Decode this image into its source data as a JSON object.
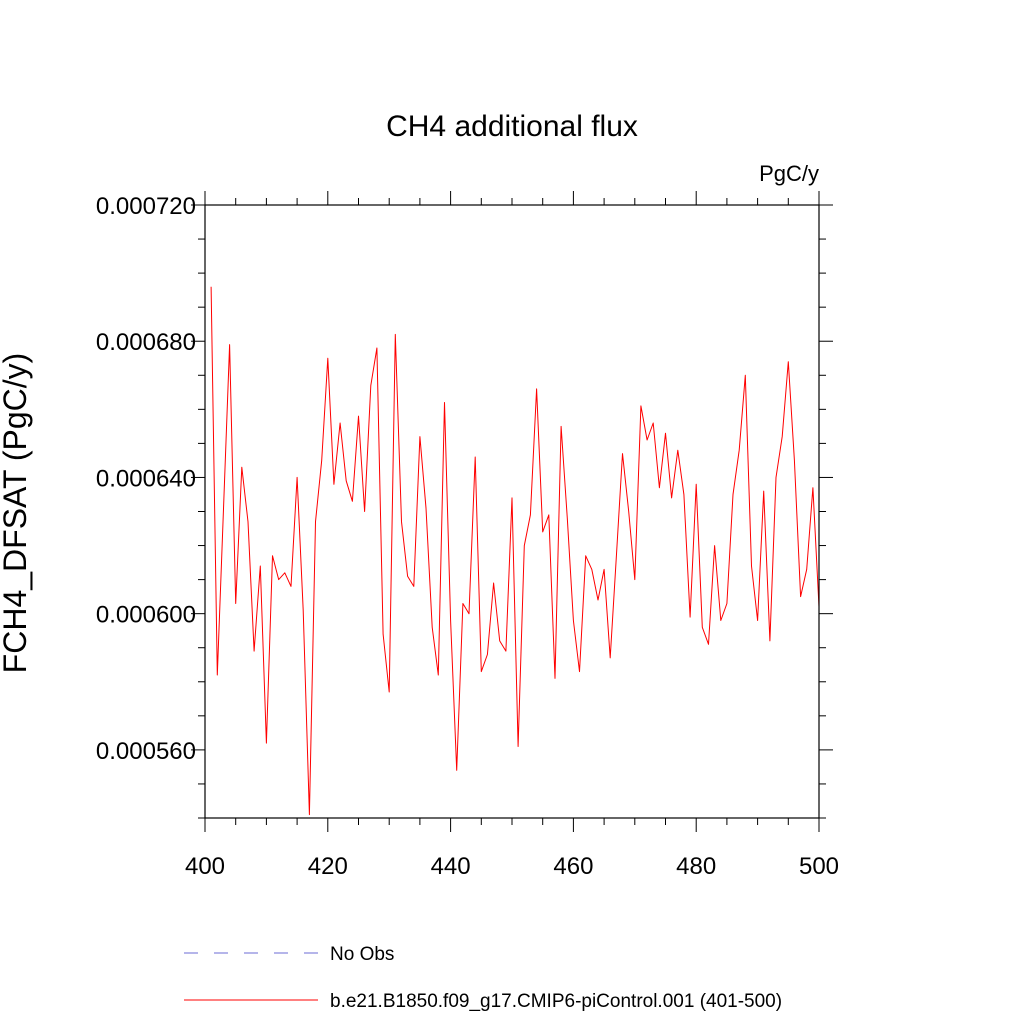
{
  "chart_data": {
    "type": "line",
    "title": "CH4 additional flux",
    "units_label": "PgC/y",
    "xlabel": "",
    "ylabel": "FCH4_DFSAT  (PgC/y)",
    "xlim": [
      400,
      500
    ],
    "ylim": [
      0.00054,
      0.00072
    ],
    "x_ticks": [
      400,
      420,
      440,
      460,
      480,
      500
    ],
    "x_tick_labels": [
      "400",
      "420",
      "440",
      "460",
      "480",
      "500"
    ],
    "y_ticks": [
      0.00056,
      0.0006,
      0.00064,
      0.00068,
      0.00072
    ],
    "y_tick_labels": [
      "0.000560",
      "0.000600",
      "0.000640",
      "0.000680",
      "0.000720"
    ],
    "grid": false,
    "legend_position": "bottom",
    "series": [
      {
        "name": "b.e21.B1850.f09_g17.CMIP6-piControl.001 (401-500)",
        "color": "#ff0000",
        "x": [
          401,
          402,
          403,
          404,
          405,
          406,
          407,
          408,
          409,
          410,
          411,
          412,
          413,
          414,
          415,
          416,
          417,
          418,
          419,
          420,
          421,
          422,
          423,
          424,
          425,
          426,
          427,
          428,
          429,
          430,
          431,
          432,
          433,
          434,
          435,
          436,
          437,
          438,
          439,
          440,
          441,
          442,
          443,
          444,
          445,
          446,
          447,
          448,
          449,
          450,
          451,
          452,
          453,
          454,
          455,
          456,
          457,
          458,
          459,
          460,
          461,
          462,
          463,
          464,
          465,
          466,
          467,
          468,
          469,
          470,
          471,
          472,
          473,
          474,
          475,
          476,
          477,
          478,
          479,
          480,
          481,
          482,
          483,
          484,
          485,
          486,
          487,
          488,
          489,
          490,
          491,
          492,
          493,
          494,
          495,
          496,
          497,
          498,
          499,
          500
        ],
        "values": [
          0.000696,
          0.000582,
          0.00063,
          0.000679,
          0.000603,
          0.000643,
          0.000627,
          0.000589,
          0.000614,
          0.000562,
          0.000617,
          0.00061,
          0.000612,
          0.000608,
          0.00064,
          0.000601,
          0.000541,
          0.000627,
          0.000645,
          0.000675,
          0.000638,
          0.000656,
          0.000639,
          0.000633,
          0.000658,
          0.00063,
          0.000667,
          0.000678,
          0.000594,
          0.000577,
          0.000682,
          0.000627,
          0.000611,
          0.000608,
          0.000652,
          0.000631,
          0.000596,
          0.000582,
          0.000662,
          0.000598,
          0.000554,
          0.000603,
          0.0006,
          0.000646,
          0.000583,
          0.000588,
          0.000609,
          0.000592,
          0.000589,
          0.000634,
          0.000561,
          0.00062,
          0.000629,
          0.000666,
          0.000624,
          0.000629,
          0.000581,
          0.000655,
          0.000628,
          0.000598,
          0.000583,
          0.000617,
          0.000613,
          0.000604,
          0.000613,
          0.000587,
          0.000617,
          0.000647,
          0.00063,
          0.00061,
          0.000661,
          0.000651,
          0.000656,
          0.000637,
          0.000653,
          0.000634,
          0.000648,
          0.000635,
          0.000599,
          0.000638,
          0.000596,
          0.000591,
          0.00062,
          0.000598,
          0.000603,
          0.000635,
          0.000648,
          0.00067,
          0.000614,
          0.000598,
          0.000636,
          0.000592,
          0.00064,
          0.000652,
          0.000674,
          0.000645,
          0.000605,
          0.000613,
          0.000637,
          0.000602
        ]
      }
    ],
    "legend": [
      {
        "label": "No Obs",
        "style": "dashed",
        "color": "#6b6bd6"
      },
      {
        "label": "b.e21.B1850.f09_g17.CMIP6-piControl.001 (401-500)",
        "style": "solid",
        "color": "#ff0000"
      }
    ]
  }
}
